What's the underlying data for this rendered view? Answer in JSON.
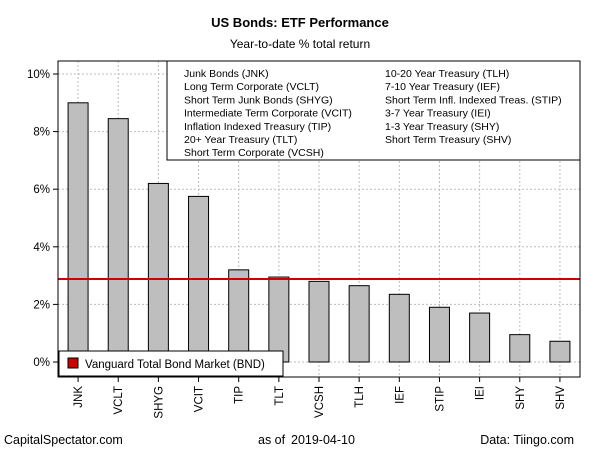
{
  "chart_data": {
    "type": "bar",
    "title": "US Bonds: ETF Performance",
    "subtitle": "Year-to-date % total return",
    "categories": [
      "JNK",
      "VCLT",
      "SHYG",
      "VCIT",
      "TIP",
      "TLT",
      "VCSH",
      "TLH",
      "IEF",
      "STIP",
      "IEI",
      "SHY",
      "SHV"
    ],
    "values": [
      9.0,
      8.45,
      6.2,
      5.75,
      3.2,
      2.95,
      2.8,
      2.65,
      2.35,
      1.9,
      1.7,
      0.95,
      0.72
    ],
    "ylim": [
      0,
      10
    ],
    "yticks": [
      0,
      2,
      4,
      6,
      8,
      10
    ],
    "ytick_labels": [
      "0%",
      "2%",
      "4%",
      "6%",
      "8%",
      "10%"
    ],
    "grid": true,
    "bar_color": "#bebebe",
    "reference_line": {
      "value": 2.88,
      "color": "#cc0000",
      "label": "Vanguard Total Bond Market (BND)"
    },
    "legend_columns": [
      [
        "Junk Bonds (JNK)",
        "Long Term Corporate (VCLT)",
        "Short Term Junk Bonds (SHYG)",
        "Intermediate Term Corporate (VCIT)",
        "Inflation Indexed Treasury (TIP)",
        "20+ Year Treasury (TLT)",
        "Short Term Corporate (VCSH)"
      ],
      [
        "10-20 Year Treasury (TLH)",
        "7-10 Year Treasury (IEF)",
        "Short Term Infl. Indexed Treas. (STIP)",
        "3-7 Year Treasury (IEI)",
        "1-3 Year Treasury (SHY)",
        "Short Term Treasury (SHV)"
      ]
    ],
    "legend_placement": "top-right"
  },
  "footer": {
    "left": "CapitalSpectator.com",
    "center_prefix": "as of",
    "center_date": "2019-04-10",
    "right": "Data: Tiingo.com"
  }
}
